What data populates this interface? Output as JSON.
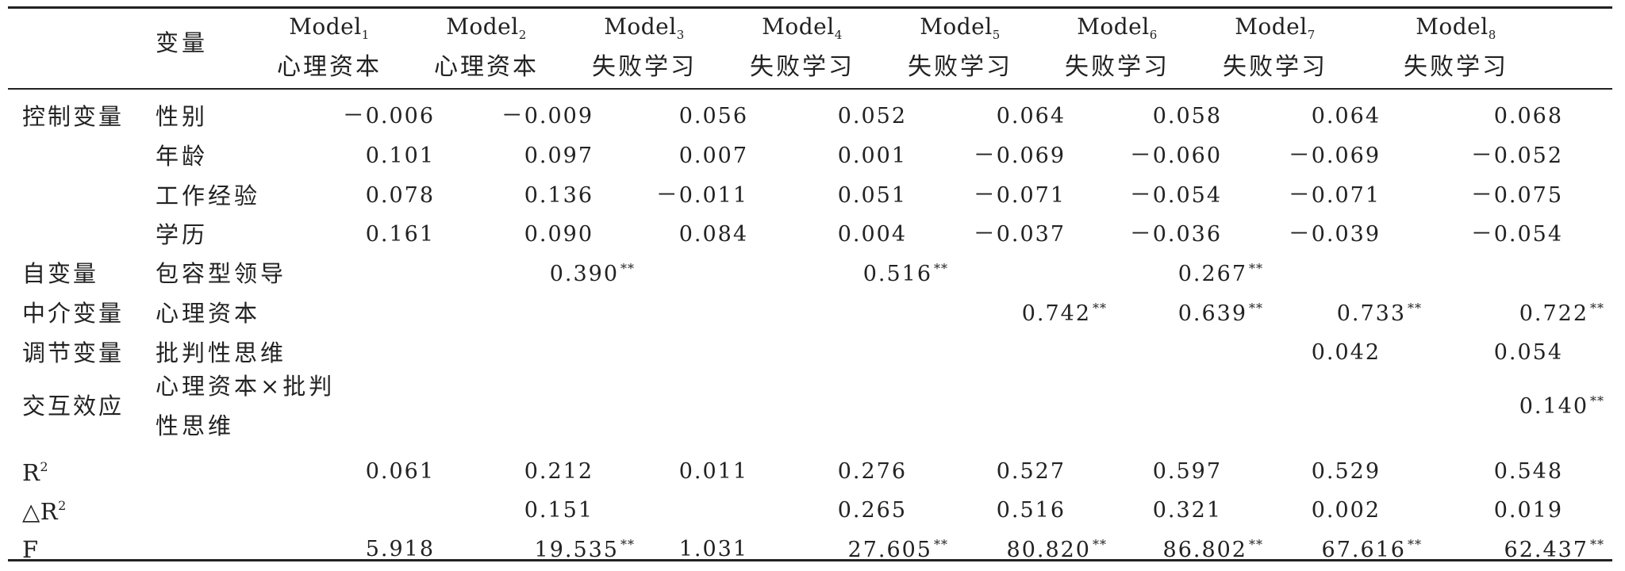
{
  "header": {
    "variable_label": "变量",
    "models": [
      {
        "name": "Model",
        "sub": "1",
        "dependent": "心理资本"
      },
      {
        "name": "Model",
        "sub": "2",
        "dependent": "心理资本"
      },
      {
        "name": "Model",
        "sub": "3",
        "dependent": "失败学习"
      },
      {
        "name": "Model",
        "sub": "4",
        "dependent": "失败学习"
      },
      {
        "name": "Model",
        "sub": "5",
        "dependent": "失败学习"
      },
      {
        "name": "Model",
        "sub": "6",
        "dependent": "失败学习"
      },
      {
        "name": "Model",
        "sub": "7",
        "dependent": "失败学习"
      },
      {
        "name": "Model",
        "sub": "8",
        "dependent": "失败学习"
      }
    ]
  },
  "rows": [
    {
      "category": "控制变量",
      "variable": "性别",
      "values": [
        "－0.006",
        "－0.009",
        "0.056",
        "0.052",
        "0.064",
        "0.058",
        "0.064",
        "0.068"
      ],
      "stars": [
        "",
        "",
        "",
        "",
        "",
        "",
        "",
        ""
      ]
    },
    {
      "category": "",
      "variable": "年龄",
      "values": [
        "0.101",
        "0.097",
        "0.007",
        "0.001",
        "－0.069",
        "－0.060",
        "－0.069",
        "－0.052"
      ],
      "stars": [
        "",
        "",
        "",
        "",
        "",
        "",
        "",
        ""
      ]
    },
    {
      "category": "",
      "variable": "工作经验",
      "values": [
        "0.078",
        "0.136",
        "－0.011",
        "0.051",
        "－0.071",
        "－0.054",
        "－0.071",
        "－0.075"
      ],
      "stars": [
        "",
        "",
        "",
        "",
        "",
        "",
        "",
        ""
      ]
    },
    {
      "category": "",
      "variable": "学历",
      "values": [
        "0.161",
        "0.090",
        "0.084",
        "0.004",
        "－0.037",
        "－0.036",
        "－0.039",
        "－0.054"
      ],
      "stars": [
        "",
        "",
        "",
        "",
        "",
        "",
        "",
        ""
      ]
    },
    {
      "category": "自变量",
      "variable": "包容型领导",
      "values": [
        "",
        "0.390",
        "",
        "0.516",
        "",
        "0.267",
        "",
        ""
      ],
      "stars": [
        "",
        "**",
        "",
        "**",
        "",
        "**",
        "",
        ""
      ]
    },
    {
      "category": "中介变量",
      "variable": "心理资本",
      "values": [
        "",
        "",
        "",
        "",
        "0.742",
        "0.639",
        "0.733",
        "0.722"
      ],
      "stars": [
        "",
        "",
        "",
        "",
        "**",
        "**",
        "**",
        "**"
      ]
    },
    {
      "category": "调节变量",
      "variable": "批判性思维",
      "values": [
        "",
        "",
        "",
        "",
        "",
        "",
        "0.042",
        "0.054"
      ],
      "stars": [
        "",
        "",
        "",
        "",
        "",
        "",
        "",
        ""
      ]
    },
    {
      "category": "交互效应",
      "variable_line1": "心理资本×批判",
      "variable_line2": "性思维",
      "values": [
        "",
        "",
        "",
        "",
        "",
        "",
        "",
        "0.140"
      ],
      "stars": [
        "",
        "",
        "",
        "",
        "",
        "",
        "",
        "**"
      ]
    }
  ],
  "stats": [
    {
      "label": "R",
      "sup": "2",
      "values": [
        "0.061",
        "0.212",
        "0.011",
        "0.276",
        "0.527",
        "0.597",
        "0.529",
        "0.548"
      ],
      "stars": [
        "",
        "",
        "",
        "",
        "",
        "",
        "",
        ""
      ]
    },
    {
      "label": "△R",
      "sup": "2",
      "values": [
        "",
        "0.151",
        "",
        "0.265",
        "0.516",
        "0.321",
        "0.002",
        "0.019"
      ],
      "stars": [
        "",
        "",
        "",
        "",
        "",
        "",
        "",
        ""
      ]
    },
    {
      "label": "F",
      "sup": "",
      "values": [
        "5.918",
        "19.535",
        "1.031",
        "27.605",
        "80.820",
        "86.802",
        "67.616",
        "62.437"
      ],
      "stars": [
        "",
        "**",
        "",
        "**",
        "**",
        "**",
        "**",
        "**"
      ]
    }
  ]
}
